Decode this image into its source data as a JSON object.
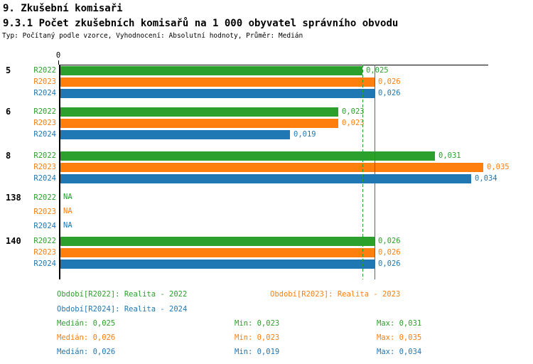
{
  "header": {
    "title": "9. Zkušební komisaři",
    "subtitle": "9.3.1 Počet zkušebních komisařů na 1 000 obyvatel správního obvodu",
    "meta": "Typ: Počítaný podle vzorce, Vyhodnocení: Absolutní hodnoty, Průměr: Medián"
  },
  "colors": {
    "green": "#2ca02c",
    "orange": "#ff7f0e",
    "blue": "#1f77b4",
    "axis": "#000000",
    "background": "#ffffff"
  },
  "chart_data": {
    "type": "bar",
    "orientation": "horizontal",
    "title": "9.3.1 Počet zkušebních komisařů na 1 000 obyvatel správního obvodu",
    "xlabel": "",
    "ylabel": "",
    "xlim": [
      0,
      0.0355
    ],
    "axis": {
      "zero_label": "0"
    },
    "series_names": [
      "R2022",
      "R2023",
      "R2024"
    ],
    "series_colors": [
      "#2ca02c",
      "#ff7f0e",
      "#1f77b4"
    ],
    "groups": [
      {
        "category": "5",
        "rows": [
          {
            "series": "R2022",
            "value": 0.025,
            "label": "0,025"
          },
          {
            "series": "R2023",
            "value": 0.026,
            "label": "0,026"
          },
          {
            "series": "R2024",
            "value": 0.026,
            "label": "0,026"
          }
        ]
      },
      {
        "category": "6",
        "rows": [
          {
            "series": "R2022",
            "value": 0.023,
            "label": "0,023"
          },
          {
            "series": "R2023",
            "value": 0.023,
            "label": "0,023"
          },
          {
            "series": "R2024",
            "value": 0.019,
            "label": "0,019"
          }
        ]
      },
      {
        "category": "8",
        "rows": [
          {
            "series": "R2022",
            "value": 0.031,
            "label": "0,031"
          },
          {
            "series": "R2023",
            "value": 0.035,
            "label": "0,035"
          },
          {
            "series": "R2024",
            "value": 0.034,
            "label": "0,034"
          }
        ]
      },
      {
        "category": "138",
        "rows": [
          {
            "series": "R2022",
            "value": null,
            "label": "NA"
          },
          {
            "series": "R2023",
            "value": null,
            "label": "NA"
          },
          {
            "series": "R2024",
            "value": null,
            "label": "NA"
          }
        ]
      },
      {
        "category": "140",
        "rows": [
          {
            "series": "R2022",
            "value": 0.026,
            "label": "0,026"
          },
          {
            "series": "R2023",
            "value": 0.026,
            "label": "0,026"
          },
          {
            "series": "R2024",
            "value": 0.026,
            "label": "0,026"
          }
        ]
      }
    ],
    "reference_lines": [
      {
        "name": "median-R2022",
        "value": 0.025,
        "color": "#2ca02c",
        "style": "dashed"
      },
      {
        "name": "median-R2023",
        "value": 0.026,
        "color": "#ff7f0e",
        "style": "solid"
      },
      {
        "name": "median-R2024",
        "value": 0.026,
        "color": "#1f77b4",
        "style": "solid"
      }
    ],
    "legend_position": "bottom"
  },
  "legend": {
    "periods": [
      {
        "text": "Období[R2022]: Realita - 2022",
        "color": "#2ca02c"
      },
      {
        "text": "Období[R2023]: Realita - 2023",
        "color": "#ff7f0e"
      },
      {
        "text": "Období[R2024]: Realita - 2024",
        "color": "#1f77b4"
      }
    ],
    "stats": [
      {
        "median": "Medián: 0,025",
        "min": "Min: 0,023",
        "max": "Max: 0,031",
        "color": "#2ca02c"
      },
      {
        "median": "Medián: 0,026",
        "min": "Min: 0,023",
        "max": "Max: 0,035",
        "color": "#ff7f0e"
      },
      {
        "median": "Medián: 0,026",
        "min": "Min: 0,019",
        "max": "Max: 0,034",
        "color": "#1f77b4"
      }
    ]
  }
}
